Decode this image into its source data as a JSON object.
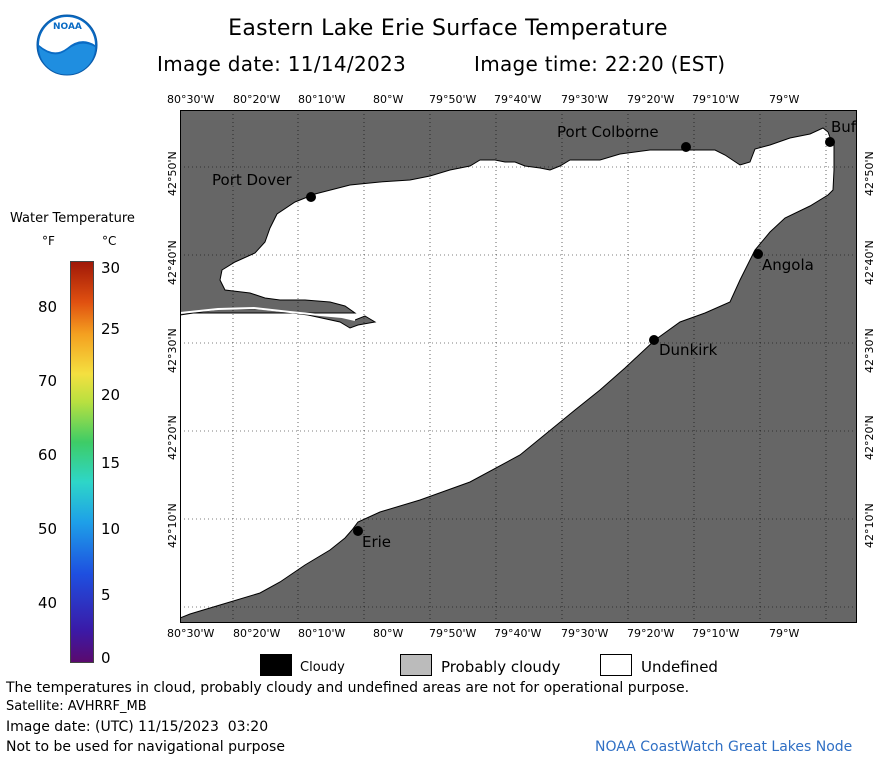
{
  "header": {
    "logo_text": "NOAA",
    "title": "Eastern Lake Erie Surface Temperature",
    "image_date": "Image date: 11/14/2023",
    "image_time": "Image time: 22:20 (EST)"
  },
  "map": {
    "lon_labels": [
      "80°30'W",
      "80°20'W",
      "80°10'W",
      "80°W",
      "79°50'W",
      "79°40'W",
      "79°30'W",
      "79°20'W",
      "79°10'W",
      "79°W"
    ],
    "lat_labels": [
      "42°50'N",
      "42°40'N",
      "42°30'N",
      "42°20'N",
      "42°10'N"
    ],
    "cities": [
      {
        "name": "Port Colborne"
      },
      {
        "name": "Buf"
      },
      {
        "name": "Port Dover"
      },
      {
        "name": "Angola"
      },
      {
        "name": "Dunkirk"
      },
      {
        "name": "Erie"
      }
    ],
    "colors": {
      "land": "#666666",
      "water": "#ffffff",
      "grid": "#000000"
    }
  },
  "colorbar": {
    "title": "Water Temperature",
    "unit_f": "°F",
    "unit_c": "°C",
    "f_ticks": [
      "80",
      "70",
      "60",
      "50",
      "40"
    ],
    "c_ticks": [
      "30",
      "25",
      "20",
      "15",
      "10",
      "5",
      "0"
    ]
  },
  "legend": {
    "items": [
      {
        "label": "Cloudy",
        "color": "#000000"
      },
      {
        "label": "Probably cloudy",
        "color": "#bbbbbb"
      },
      {
        "label": "Undefined",
        "color": "#ffffff"
      }
    ]
  },
  "footer": {
    "disclaimer": "The temperatures in cloud, probably cloudy and undefined areas are not for operational purpose.",
    "satellite": "Satellite: AVHRRF_MB",
    "utc_date": "Image date: (UTC) 11/15/2023  03:20",
    "nav_warning": "Not to be used for navigational purpose",
    "credit": "NOAA CoastWatch Great Lakes Node"
  }
}
